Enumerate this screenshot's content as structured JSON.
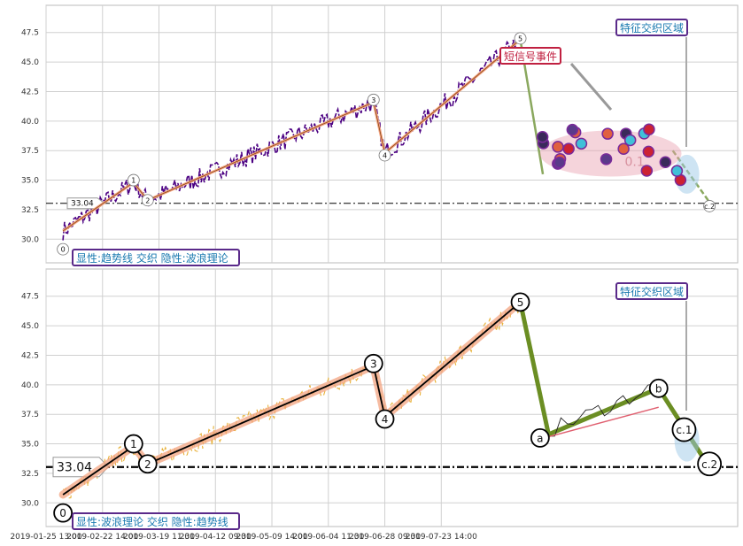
{
  "chart_data": [
    {
      "type": "line",
      "panel": "top",
      "title": "",
      "xlabel": "",
      "ylabel": "",
      "ylim": [
        28.0,
        49.8
      ],
      "yticks": [
        "30.0",
        "32.5",
        "35.0",
        "37.5",
        "40.0",
        "42.5",
        "45.0",
        "47.5"
      ],
      "grid": true,
      "reference_line": {
        "value": 33.04,
        "label": "33.04",
        "color": "#000000",
        "style": "dash-dot"
      },
      "colors": {
        "price": "#4b0082",
        "trend": "#f4a582",
        "trend_edge": "#8b4513",
        "wave_proj": "#8aa85e",
        "ellipse": "#e8a0b0"
      },
      "wave_labels": [
        {
          "text": "0",
          "x": 6,
          "y": 29.6
        },
        {
          "text": "1",
          "x": 31,
          "y": 35.0
        },
        {
          "text": "2",
          "x": 36,
          "y": 33.3
        },
        {
          "text": "3",
          "x": 116,
          "y": 41.8
        },
        {
          "text": "4",
          "x": 120,
          "y": 37.1
        },
        {
          "text": "5",
          "x": 168,
          "y": 47.0
        },
        {
          "text": "c.2",
          "x": 235,
          "y": 32.8
        }
      ],
      "elliott_segments": [
        {
          "x": [
            6,
            31
          ],
          "y": [
            30.7,
            34.8
          ]
        },
        {
          "x": [
            31,
            36
          ],
          "y": [
            34.8,
            33.3
          ]
        },
        {
          "x": [
            36,
            116
          ],
          "y": [
            33.3,
            41.6
          ]
        },
        {
          "x": [
            116,
            120
          ],
          "y": [
            41.6,
            37.3
          ]
        },
        {
          "x": [
            120,
            168
          ],
          "y": [
            37.3,
            46.9
          ]
        }
      ],
      "signal_cluster": {
        "x_range": [
          175,
          225
        ],
        "y_range": [
          35.0,
          39.5
        ],
        "value_text": "0.1"
      },
      "annotations": [
        {
          "text": "短信号事件",
          "style": "red"
        },
        {
          "text": "特征交织区域",
          "style": "teal"
        },
        {
          "text": "显性:趋势线 交织 隐性:波浪理论",
          "style": "teal"
        }
      ]
    },
    {
      "type": "line",
      "panel": "bottom",
      "title": "",
      "xlabel": "",
      "ylabel": "",
      "ylim": [
        28.0,
        49.8
      ],
      "yticks": [
        "30.0",
        "32.5",
        "35.0",
        "37.5",
        "40.0",
        "42.5",
        "45.0",
        "47.5"
      ],
      "grid": true,
      "reference_line": {
        "value": 33.04,
        "label": "33.04",
        "color": "#000000",
        "style": "dash-dot"
      },
      "colors": {
        "price": "#e8b23a",
        "wave": "#000000",
        "wave_glow": "#f4a582",
        "abc": "#6b8e23",
        "trend": "#e06070"
      },
      "wave_labels": [
        {
          "text": "0",
          "x": 6,
          "y": 29.6
        },
        {
          "text": "1",
          "x": 31,
          "y": 35.0
        },
        {
          "text": "2",
          "x": 36,
          "y": 33.3
        },
        {
          "text": "3",
          "x": 116,
          "y": 41.8
        },
        {
          "text": "4",
          "x": 120,
          "y": 37.1
        },
        {
          "text": "5",
          "x": 168,
          "y": 47.0
        },
        {
          "text": "a",
          "x": 175,
          "y": 35.5
        },
        {
          "text": "b",
          "x": 217,
          "y": 39.7
        },
        {
          "text": "c.1",
          "x": 226,
          "y": 36.2
        },
        {
          "text": "c.2",
          "x": 235,
          "y": 33.3
        }
      ],
      "elliott_segments": [
        {
          "x": [
            6,
            31
          ],
          "y": [
            30.7,
            34.8
          ]
        },
        {
          "x": [
            31,
            36
          ],
          "y": [
            34.8,
            33.3
          ]
        },
        {
          "x": [
            36,
            116
          ],
          "y": [
            33.3,
            41.6
          ]
        },
        {
          "x": [
            116,
            120
          ],
          "y": [
            41.6,
            37.3
          ]
        },
        {
          "x": [
            120,
            168
          ],
          "y": [
            37.3,
            47.0
          ]
        },
        {
          "x": [
            168,
            178
          ],
          "y": [
            47.0,
            35.8
          ]
        },
        {
          "x": [
            178,
            217
          ],
          "y": [
            35.8,
            39.7
          ]
        },
        {
          "x": [
            217,
            235
          ],
          "y": [
            39.7,
            33.0
          ]
        }
      ],
      "annotations": [
        {
          "text": "特征交织区域",
          "style": "teal"
        },
        {
          "text": "显性:波浪理论 交织 隐性:趋势线",
          "style": "teal"
        }
      ]
    }
  ],
  "x_axis": {
    "range": [
      0,
      245
    ],
    "tick_labels": [
      {
        "x": 0,
        "label": "2019-01-25 13:00"
      },
      {
        "x": 20,
        "label": "2019-02-22 14:00"
      },
      {
        "x": 40,
        "label": "2019-03-19 11:30"
      },
      {
        "x": 60,
        "label": "2019-04-12 09:30"
      },
      {
        "x": 80,
        "label": "2019-05-09 14:00"
      },
      {
        "x": 100,
        "label": "2019-06-04 11:30"
      },
      {
        "x": 120,
        "label": "2019-06-28 09:30"
      },
      {
        "x": 140,
        "label": "2019-07-23 14:00"
      }
    ]
  }
}
